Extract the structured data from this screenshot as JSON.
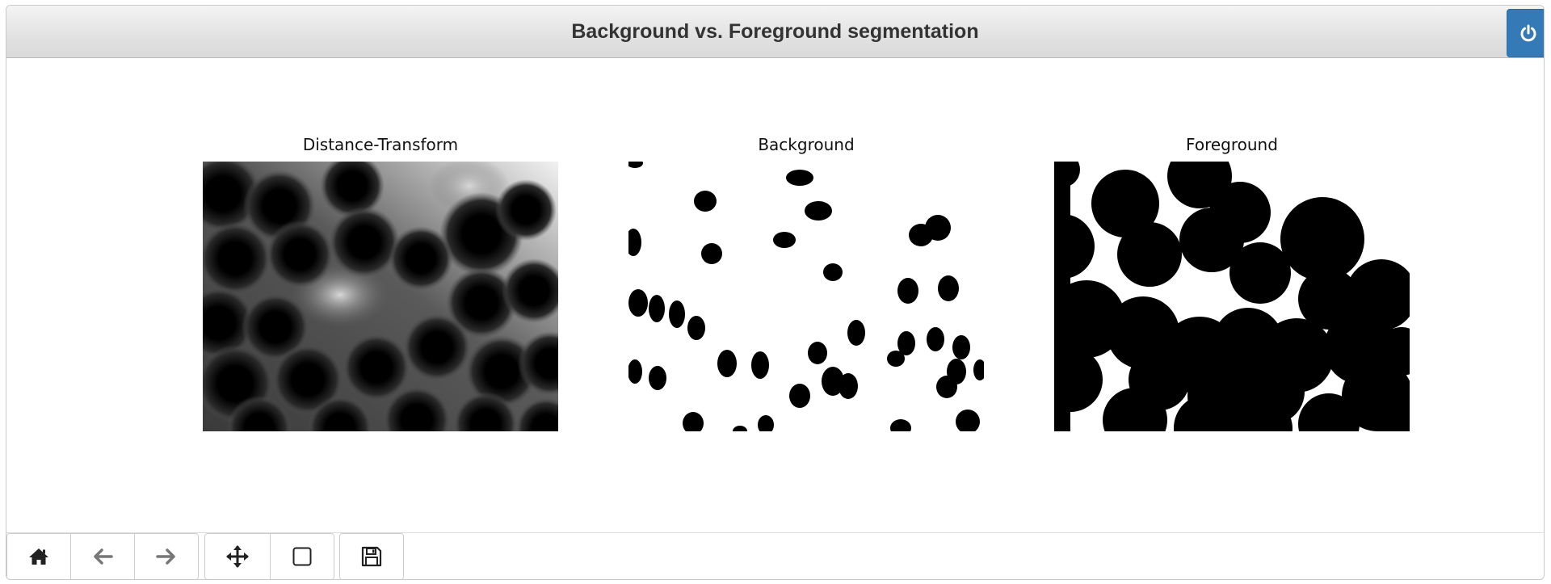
{
  "window": {
    "title": "Background vs. Foreground segmentation",
    "close_icon": "power-icon",
    "accent_color": "#337ab7"
  },
  "panels": [
    {
      "title": "Distance-Transform",
      "image": "grayscale distance-transform map"
    },
    {
      "title": "Background",
      "image": "white background mask with black blobs"
    },
    {
      "title": "Foreground",
      "image": "black foreground mask with large merged discs"
    }
  ],
  "toolbar": {
    "groups": [
      [
        "home-icon",
        "back-arrow-icon",
        "forward-arrow-icon"
      ],
      [
        "move-cross-icon",
        "zoom-rect-icon"
      ],
      [
        "save-floppy-icon"
      ]
    ]
  }
}
